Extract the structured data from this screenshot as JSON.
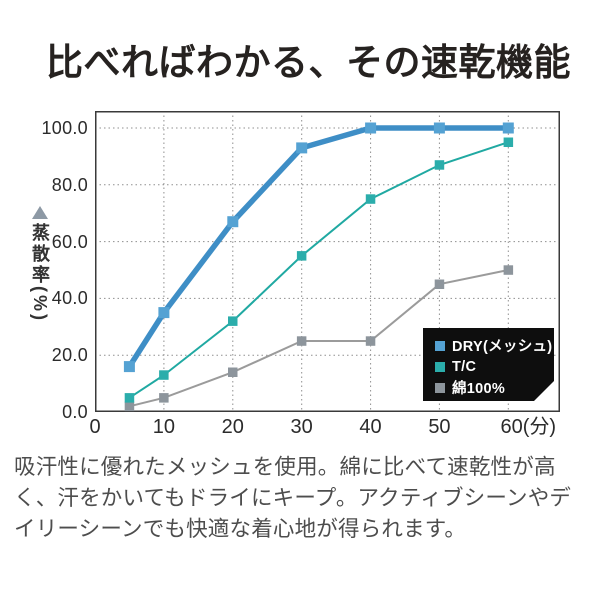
{
  "title": "比べればわかる、その速乾機能",
  "description": "吸汗性に優れたメッシュを使用。綿に比べて速乾性が高く、汗をかいてもドライにキープ。アクティブシーンやデイリーシーンでも快適な着心地が得られます。",
  "icons": {
    "y_axis_pointer": "up-triangle"
  },
  "chart_data": {
    "type": "line",
    "title": "",
    "ylabel": "蒸散率(%)",
    "xlabel": "分",
    "x": [
      5,
      10,
      20,
      30,
      40,
      50,
      60
    ],
    "xlim": [
      0,
      67.5
    ],
    "ylim": [
      0,
      106
    ],
    "series": [
      {
        "id": "dry-mesh",
        "name": "DRY(メッシュ)",
        "values": [
          16,
          35,
          67,
          93,
          100,
          100,
          100
        ],
        "line_color": "#3e8ec6",
        "marker_color": "#55a2d3",
        "line_width": 5.5,
        "marker_size": 11
      },
      {
        "id": "tc",
        "name": "T/C",
        "values": [
          5,
          13,
          32,
          55,
          75,
          87,
          95
        ],
        "line_color": "#20a9a2",
        "marker_color": "#2badab",
        "line_width": 2,
        "marker_size": 9.5
      },
      {
        "id": "cotton-100",
        "name": "綿100%",
        "values": [
          2,
          5,
          14,
          25,
          25,
          45,
          50
        ],
        "line_color": "#9b9b9b",
        "marker_color": "#8d959c",
        "line_width": 2,
        "marker_size": 9.5
      }
    ],
    "y_ticks": [
      {
        "label": "100.0",
        "value": 100
      },
      {
        "label": "80.0",
        "value": 80
      },
      {
        "label": "60.0",
        "value": 60
      },
      {
        "label": "40.0",
        "value": 40
      },
      {
        "label": "20.0",
        "value": 20
      },
      {
        "label": "0.0",
        "value": 0
      }
    ],
    "x_ticks": [
      {
        "label": "0",
        "value": 0
      },
      {
        "label": "10",
        "value": 10
      },
      {
        "label": "20",
        "value": 20
      },
      {
        "label": "30",
        "value": 30
      },
      {
        "label": "40",
        "value": 40
      },
      {
        "label": "50",
        "value": 50
      },
      {
        "label": "60(分)",
        "value": 60,
        "offset": 20
      }
    ],
    "grid": {
      "style": "dotted",
      "x_values": [
        10,
        20,
        30,
        40,
        50,
        60
      ],
      "y_values": [
        20,
        40,
        60,
        80,
        100
      ]
    },
    "legend": {
      "position": "inside-bottom-right",
      "bg": "#0e0e0e",
      "text_color": "#ffffff"
    }
  }
}
